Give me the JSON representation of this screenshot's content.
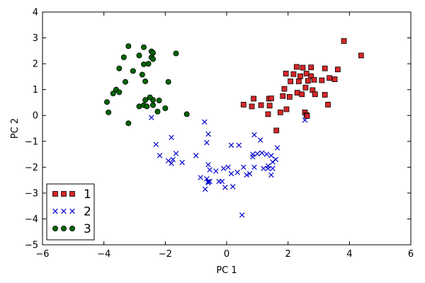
{
  "chart_data": {
    "type": "scatter",
    "title": "",
    "xlabel": "PC 1",
    "ylabel": "PC 2",
    "xlim": [
      -6,
      6
    ],
    "ylim": [
      -5,
      4
    ],
    "xticks": [
      -6,
      -4,
      -2,
      0,
      2,
      4,
      6
    ],
    "yticks": [
      -5,
      -4,
      -3,
      -2,
      -1,
      0,
      1,
      2,
      3,
      4
    ],
    "xtick_labels": [
      "−6",
      "−4",
      "−2",
      "0",
      "2",
      "4",
      "6"
    ],
    "ytick_labels": [
      "−5",
      "−4",
      "−3",
      "−2",
      "−1",
      "0",
      "1",
      "2",
      "3",
      "4"
    ],
    "grid": false,
    "legend_position": "bottom-left",
    "series": [
      {
        "name": "1",
        "marker": "square",
        "color": "#d62728",
        "points": [
          [
            3.82,
            2.88
          ],
          [
            4.38,
            2.32
          ],
          [
            2.28,
            1.88
          ],
          [
            2.48,
            1.85
          ],
          [
            2.75,
            1.86
          ],
          [
            3.2,
            1.82
          ],
          [
            3.62,
            1.78
          ],
          [
            1.93,
            1.62
          ],
          [
            2.18,
            1.6
          ],
          [
            2.6,
            1.62
          ],
          [
            2.4,
            1.52
          ],
          [
            2.75,
            1.52
          ],
          [
            3.35,
            1.45
          ],
          [
            2.08,
            1.32
          ],
          [
            2.35,
            1.32
          ],
          [
            2.65,
            1.34
          ],
          [
            2.85,
            1.38
          ],
          [
            3.1,
            1.36
          ],
          [
            3.52,
            1.4
          ],
          [
            1.88,
            1.03
          ],
          [
            2.57,
            1.08
          ],
          [
            2.8,
            0.98
          ],
          [
            2.3,
            0.88
          ],
          [
            2.45,
            0.82
          ],
          [
            2.88,
            0.82
          ],
          [
            3.2,
            0.8
          ],
          [
            1.38,
            0.65
          ],
          [
            1.45,
            0.66
          ],
          [
            1.83,
            0.75
          ],
          [
            2.05,
            0.72
          ],
          [
            0.88,
            0.65
          ],
          [
            0.55,
            0.42
          ],
          [
            0.82,
            0.35
          ],
          [
            1.12,
            0.4
          ],
          [
            1.4,
            0.38
          ],
          [
            3.3,
            0.42
          ],
          [
            1.75,
            0.12
          ],
          [
            1.35,
            0.05
          ],
          [
            1.95,
            0.24
          ],
          [
            2.55,
            0.12
          ],
          [
            2.6,
            0.02
          ],
          [
            1.62,
            -0.58
          ],
          [
            2.62,
            -0.02
          ]
        ]
      },
      {
        "name": "2",
        "marker": "x",
        "color": "#0000cc",
        "points": [
          [
            -2.45,
            -0.08
          ],
          [
            -2.3,
            -1.12
          ],
          [
            -1.8,
            -0.85
          ],
          [
            -2.18,
            -1.55
          ],
          [
            -1.65,
            -1.47
          ],
          [
            -1.75,
            -1.7
          ],
          [
            -1.9,
            -1.75
          ],
          [
            -1.8,
            -1.85
          ],
          [
            -1.45,
            -1.82
          ],
          [
            -0.72,
            -0.25
          ],
          [
            -0.6,
            -0.72
          ],
          [
            -0.65,
            -1.05
          ],
          [
            -1.0,
            -1.55
          ],
          [
            -0.6,
            -1.9
          ],
          [
            -0.55,
            -2.1
          ],
          [
            -0.65,
            -2.45
          ],
          [
            -0.55,
            -2.55
          ],
          [
            -0.7,
            -2.85
          ],
          [
            -0.85,
            -2.4
          ],
          [
            -0.35,
            -2.15
          ],
          [
            -0.25,
            -2.55
          ],
          [
            -0.05,
            -2.78
          ],
          [
            -0.15,
            -2.55
          ],
          [
            0.15,
            -2.25
          ],
          [
            0.35,
            -2.2
          ],
          [
            0.55,
            -2.0
          ],
          [
            0.65,
            -2.3
          ],
          [
            0.75,
            -2.25
          ],
          [
            0.85,
            -1.6
          ],
          [
            0.9,
            -0.75
          ],
          [
            1.0,
            -1.48
          ],
          [
            1.15,
            -1.45
          ],
          [
            1.3,
            -1.5
          ],
          [
            1.45,
            -1.55
          ],
          [
            1.5,
            -1.8
          ],
          [
            1.6,
            -1.7
          ],
          [
            1.35,
            -2.05
          ],
          [
            1.5,
            -2.05
          ],
          [
            1.45,
            -2.3
          ],
          [
            1.65,
            -1.25
          ],
          [
            1.35,
            -1.95
          ],
          [
            0.85,
            -1.5
          ],
          [
            0.4,
            -1.15
          ],
          [
            0.15,
            -1.15
          ],
          [
            -0.1,
            -2.05
          ],
          [
            0.2,
            -2.75
          ],
          [
            -0.6,
            -2.6
          ],
          [
            0.5,
            -3.85
          ],
          [
            1.1,
            -0.95
          ],
          [
            2.55,
            -0.18
          ],
          [
            -0.6,
            -2.55
          ],
          [
            0.05,
            -2.0
          ],
          [
            1.2,
            -2.05
          ],
          [
            0.9,
            -2.0
          ]
        ]
      },
      {
        "name": "3",
        "marker": "circle",
        "color": "#006400",
        "points": [
          [
            -3.2,
            2.68
          ],
          [
            -2.7,
            2.64
          ],
          [
            -2.45,
            2.48
          ],
          [
            -2.4,
            2.42
          ],
          [
            -1.65,
            2.4
          ],
          [
            -2.85,
            2.32
          ],
          [
            -3.35,
            2.25
          ],
          [
            -2.45,
            2.25
          ],
          [
            -2.4,
            2.18
          ],
          [
            -2.55,
            2.0
          ],
          [
            -2.7,
            1.98
          ],
          [
            -3.5,
            1.82
          ],
          [
            -3.05,
            1.72
          ],
          [
            -2.75,
            1.58
          ],
          [
            -3.3,
            1.3
          ],
          [
            -2.65,
            1.32
          ],
          [
            -1.9,
            1.3
          ],
          [
            -3.6,
            1.0
          ],
          [
            -3.5,
            0.9
          ],
          [
            -3.7,
            0.85
          ],
          [
            -2.85,
            0.35
          ],
          [
            -2.7,
            0.4
          ],
          [
            -2.4,
            0.6
          ],
          [
            -2.2,
            0.58
          ],
          [
            -2.0,
            0.28
          ],
          [
            -2.25,
            0.15
          ],
          [
            -2.6,
            0.35
          ],
          [
            -2.5,
            0.7
          ],
          [
            -3.9,
            0.52
          ],
          [
            -3.85,
            0.12
          ],
          [
            -3.2,
            -0.3
          ],
          [
            -1.3,
            0.05
          ],
          [
            -2.4,
            0.4
          ],
          [
            -2.65,
            0.6
          ]
        ]
      }
    ]
  }
}
